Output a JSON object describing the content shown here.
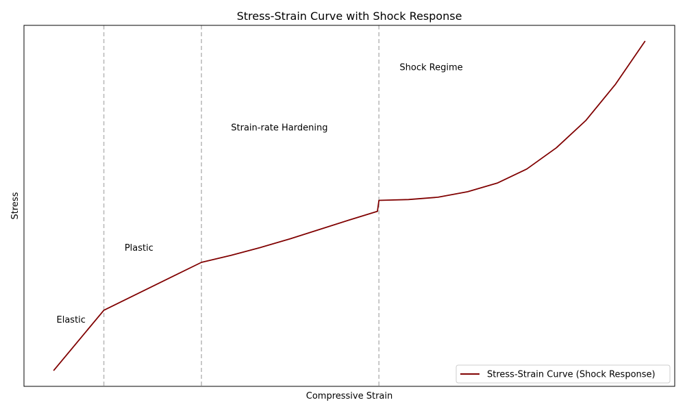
{
  "chart_data": {
    "type": "line",
    "title": "Stress-Strain Curve with Shock Response",
    "xlabel": "Compressive Strain",
    "ylabel": "Stress",
    "xlim": [
      -0.1,
      2.1
    ],
    "ylim": [
      -0.2,
      4.4
    ],
    "grid": false,
    "ticks_visible": false,
    "legend_placement": "bottom-right",
    "line_color": "#800000",
    "boundary_color": "#bbbbbb",
    "series": [
      {
        "name": "Stress-Strain Curve (Shock Response)",
        "x": [
          0.0,
          0.17,
          0.5,
          0.6,
          0.7,
          0.8,
          0.9,
          1.0,
          1.095,
          1.1,
          1.2,
          1.3,
          1.4,
          1.5,
          1.6,
          1.7,
          1.8,
          1.9,
          2.0
        ],
        "y": [
          0.0,
          0.77,
          1.38,
          1.47,
          1.57,
          1.68,
          1.8,
          1.92,
          2.03,
          2.17,
          2.18,
          2.21,
          2.28,
          2.39,
          2.57,
          2.84,
          3.19,
          3.65,
          4.2
        ]
      }
    ],
    "boundaries": [
      0.17,
      0.5,
      1.1
    ],
    "annotations": [
      {
        "text": "Elastic",
        "x": 0.01,
        "y": 0.61
      },
      {
        "text": "Plastic",
        "x": 0.24,
        "y": 1.53
      },
      {
        "text": "Strain-rate Hardening",
        "x": 0.6,
        "y": 3.06
      },
      {
        "text": "Shock Regime",
        "x": 1.17,
        "y": 3.83
      }
    ]
  }
}
